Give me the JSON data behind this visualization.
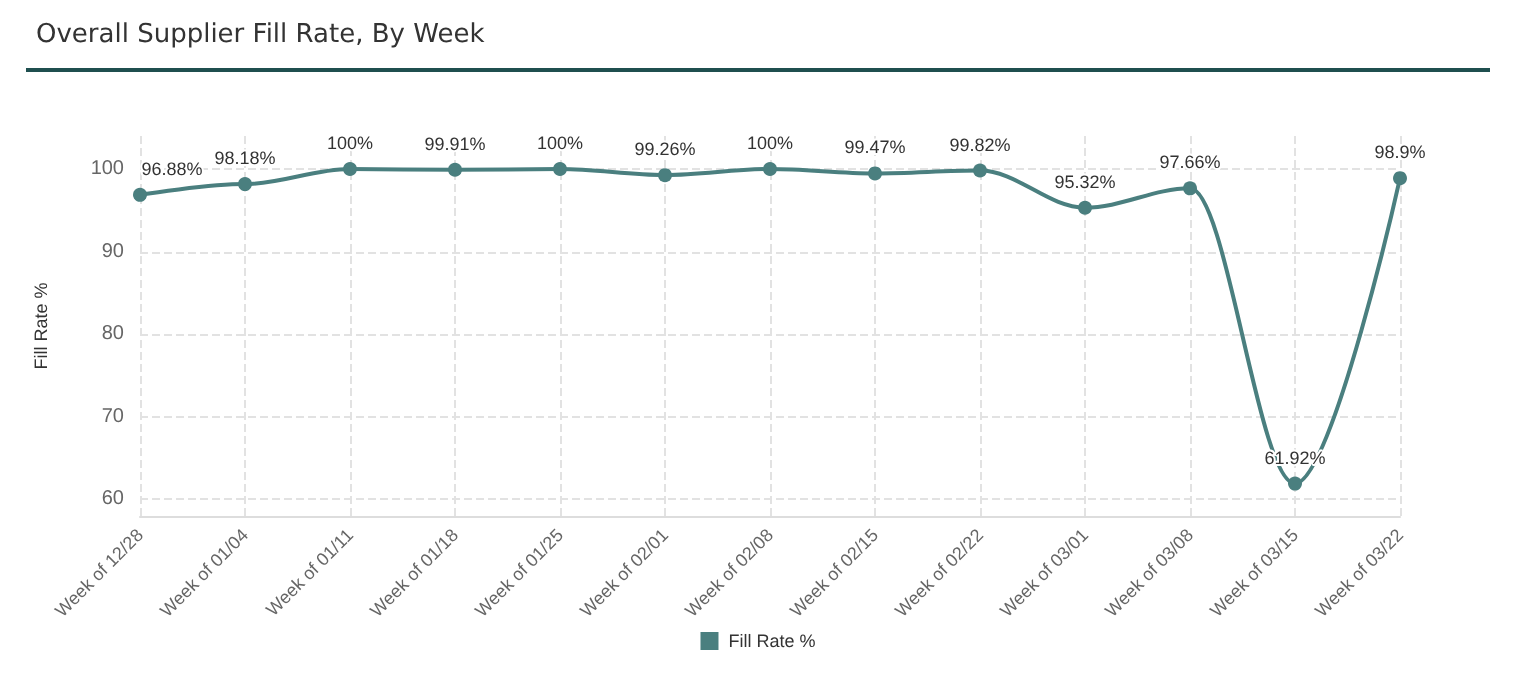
{
  "chart_data": {
    "type": "line",
    "title": "Overall Supplier Fill Rate, By Week",
    "ylabel": "Fill Rate %",
    "categories": [
      "Week of 12/28",
      "Week of 01/04",
      "Week of 01/11",
      "Week of 01/18",
      "Week of 01/25",
      "Week of 02/01",
      "Week of 02/08",
      "Week of 02/15",
      "Week of 02/22",
      "Week of 03/01",
      "Week of 03/08",
      "Week of 03/15",
      "Week of 03/22"
    ],
    "series": [
      {
        "name": "Fill Rate %",
        "color": "#4a7f7f",
        "values": [
          96.88,
          98.18,
          100,
          99.91,
          100,
          99.26,
          100,
          99.47,
          99.82,
          95.32,
          97.66,
          61.92,
          98.9
        ],
        "value_labels": [
          "96.88%",
          "98.18%",
          "100%",
          "99.91%",
          "100%",
          "99.26%",
          "100%",
          "99.47%",
          "99.82%",
          "95.32%",
          "97.66%",
          "61.92%",
          "98.9%"
        ]
      }
    ],
    "ylim": [
      58,
      104
    ],
    "yticks": [
      60,
      70,
      80,
      90,
      100
    ],
    "grid": true,
    "legend": "bottom",
    "marker": "circle",
    "line_style": "solid"
  }
}
